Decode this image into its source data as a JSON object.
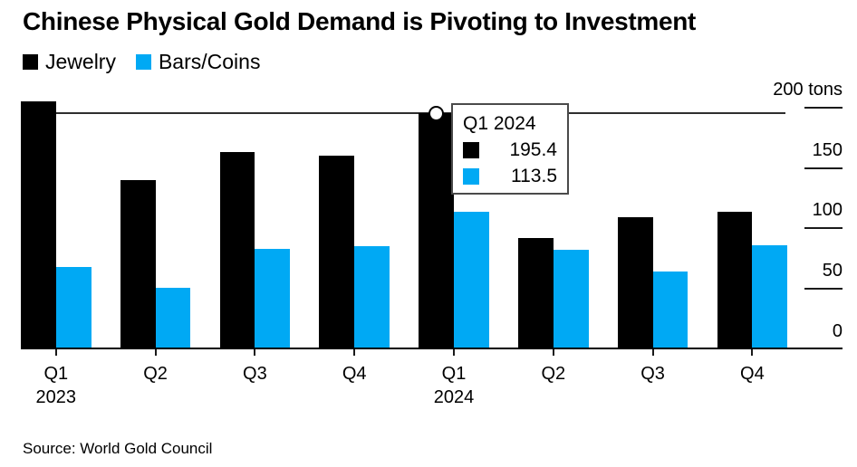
{
  "title": "Chinese Physical Gold Demand is Pivoting to Investment",
  "source": "Source: World Gold Council",
  "legend": [
    {
      "label": "Jewelry",
      "color": "#000000"
    },
    {
      "label": "Bars/Coins",
      "color": "#00a9f4"
    }
  ],
  "tooltip": {
    "title": "Q1 2024",
    "rows": [
      {
        "series": "Jewelry",
        "value": "195.4",
        "color": "#000000"
      },
      {
        "series": "Bars/Coins",
        "value": "113.5",
        "color": "#00a9f4"
      }
    ]
  },
  "y_axis": {
    "ticks": [
      {
        "value": 200,
        "label": "200 tons"
      },
      {
        "value": 150,
        "label": "150"
      },
      {
        "value": 100,
        "label": "100"
      },
      {
        "value": 50,
        "label": "50"
      },
      {
        "value": 0,
        "label": "0"
      }
    ]
  },
  "x_axis": {
    "groups": [
      {
        "quarter": "Q1",
        "year": "2023"
      },
      {
        "quarter": "Q2"
      },
      {
        "quarter": "Q3"
      },
      {
        "quarter": "Q4"
      },
      {
        "quarter": "Q1",
        "year": "2024"
      },
      {
        "quarter": "Q2"
      },
      {
        "quarter": "Q3"
      },
      {
        "quarter": "Q4"
      }
    ]
  },
  "chart_data": {
    "type": "bar",
    "title": "Chinese Physical Gold Demand is Pivoting to Investment",
    "categories": [
      "Q1 2023",
      "Q2 2023",
      "Q3 2023",
      "Q4 2023",
      "Q1 2024",
      "Q2 2024",
      "Q3 2024",
      "Q4 2024"
    ],
    "series": [
      {
        "name": "Jewelry",
        "color": "#000000",
        "values": [
          205,
          140,
          163,
          160,
          195.4,
          92,
          109,
          114
        ]
      },
      {
        "name": "Bars/Coins",
        "color": "#00a9f4",
        "values": [
          68,
          51,
          83,
          85,
          113.5,
          82,
          64,
          86
        ]
      }
    ],
    "xlabel": "",
    "ylabel": "tons",
    "ylim": [
      0,
      200
    ],
    "grid": false,
    "legend_position": "top-left",
    "highlight": {
      "category": "Q1 2024",
      "line_value": 195.4,
      "values": {
        "Jewelry": 195.4,
        "Bars/Coins": 113.5
      }
    }
  }
}
